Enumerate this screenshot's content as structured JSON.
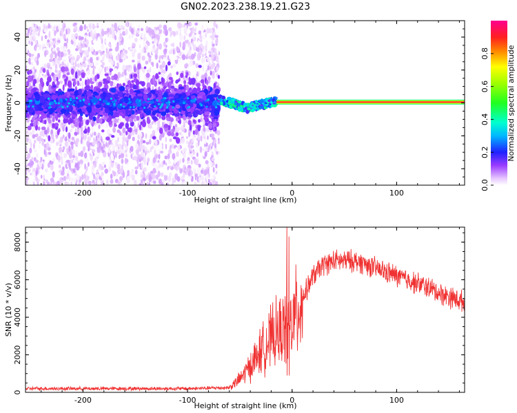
{
  "title": "GN02.2023.238.19.21.G23",
  "chart_data": [
    {
      "type": "heatmap",
      "id": "spectrogram",
      "xlabel": "Height of straight line (km)",
      "ylabel": "Frequency (Hz)",
      "xlim": [
        -255,
        165
      ],
      "ylim": [
        -50,
        50
      ],
      "xticks": [
        -200,
        -100,
        0,
        100
      ],
      "yticks": [
        -40,
        -20,
        0,
        20,
        40
      ],
      "colorbar": {
        "label": "Normalized spectral amplitude",
        "range": [
          0,
          1
        ],
        "ticks": [
          0.0,
          0.2,
          0.4,
          0.6,
          0.8
        ],
        "tick_labels": [
          "0.0",
          "0.2",
          "0.4",
          "0.6",
          "0.8"
        ]
      },
      "regions": [
        {
          "name": "broadband noise",
          "x_range": [
            -255,
            -70
          ],
          "freq_spread": [
            -50,
            48
          ],
          "amplitude": [
            0.0,
            0.25
          ]
        },
        {
          "name": "dense core",
          "x_range": [
            -255,
            -70
          ],
          "freq_spread": [
            -10,
            10
          ],
          "amplitude": [
            0.1,
            0.35
          ]
        },
        {
          "name": "transition",
          "x_range": [
            -70,
            -15
          ],
          "freq_center": [
            2,
            -3,
            1
          ],
          "amplitude": [
            0.2,
            0.6
          ]
        },
        {
          "name": "signal line",
          "x_range": [
            -15,
            165
          ],
          "freq_center": 0.5,
          "amplitude": [
            0.9,
            1.0
          ]
        }
      ]
    },
    {
      "type": "line",
      "id": "snr",
      "xlabel": "Height of straight line (km)",
      "ylabel": "SNR (10 * v/v)",
      "xlim": [
        -255,
        165
      ],
      "ylim": [
        0,
        8800
      ],
      "xticks": [
        -200,
        -100,
        0,
        100
      ],
      "yticks": [
        0,
        2000,
        4000,
        6000,
        8000
      ],
      "color": "#f03232",
      "envelope": {
        "x": [
          -255,
          -200,
          -150,
          -100,
          -60,
          -50,
          -40,
          -30,
          -20,
          -10,
          0,
          10,
          20,
          30,
          40,
          50,
          60,
          70,
          80,
          90,
          100,
          110,
          120,
          130,
          140,
          150,
          160,
          165
        ],
        "y": [
          200,
          200,
          200,
          200,
          250,
          700,
          1400,
          2200,
          2900,
          3300,
          3700,
          5000,
          6200,
          6800,
          7000,
          7000,
          7000,
          6850,
          6600,
          6400,
          6200,
          6000,
          5800,
          5600,
          5300,
          5100,
          4900,
          4800
        ]
      },
      "spikes": [
        {
          "x": -5,
          "y": 8800
        },
        {
          "x": -3,
          "y": 8300
        }
      ]
    }
  ]
}
